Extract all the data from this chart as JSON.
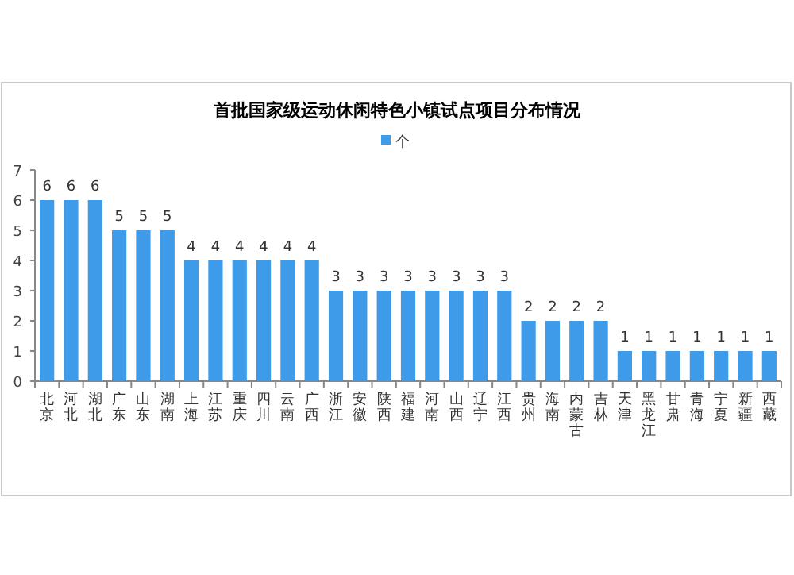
{
  "chart_data": {
    "type": "bar",
    "title": "首批国家级运动休闲特色小镇试点项目分布情况",
    "categories": [
      "北京",
      "河北",
      "湖北",
      "广东",
      "山东",
      "湖南",
      "上海",
      "江苏",
      "重庆",
      "四川",
      "云南",
      "广西",
      "浙江",
      "安徽",
      "陕西",
      "福建",
      "河南",
      "山西",
      "辽宁",
      "江西",
      "贵州",
      "海南",
      "内蒙古",
      "吉林",
      "天津",
      "黑龙江",
      "甘肃",
      "青海",
      "宁夏",
      "新疆",
      "西藏"
    ],
    "series": [
      {
        "name": "个",
        "color": "#3d9be9",
        "values": [
          6,
          6,
          6,
          5,
          5,
          5,
          4,
          4,
          4,
          4,
          4,
          4,
          3,
          3,
          3,
          3,
          3,
          3,
          3,
          3,
          2,
          2,
          2,
          2,
          1,
          1,
          1,
          1,
          1,
          1,
          1
        ]
      }
    ],
    "ylim": [
      0,
      7
    ],
    "yticks": [
      0,
      1,
      2,
      3,
      4,
      5,
      6,
      7
    ],
    "grid": false,
    "legend": "top",
    "data_labels": true
  }
}
